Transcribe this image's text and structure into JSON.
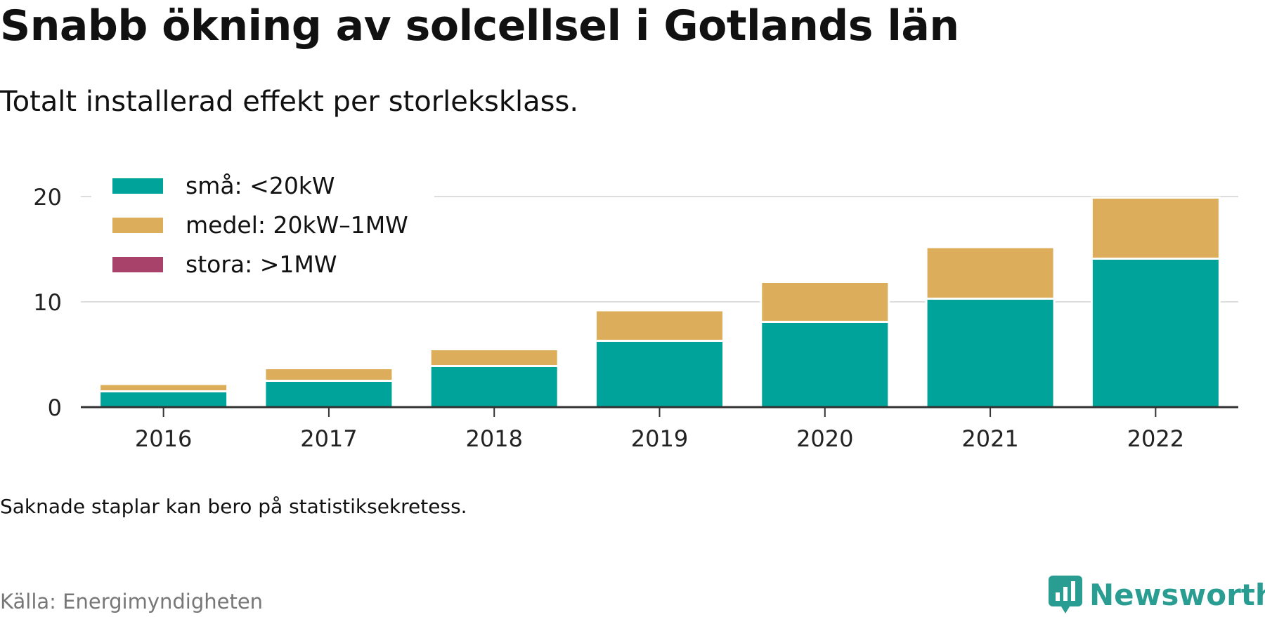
{
  "title": "Snabb ökning av solcellsel i Gotlands län",
  "subtitle": "Totalt installerad effekt per storleksklass.",
  "note": "Saknade staplar kan bero på statistiksekretess.",
  "source": "Källa: Energimyndigheten",
  "brand": {
    "name": "Newsworthy",
    "icon": "newsworthy-logo-icon",
    "color": "#2a9d92"
  },
  "chart_data": {
    "type": "bar",
    "stacked": true,
    "categories": [
      "2016",
      "2017",
      "2018",
      "2019",
      "2020",
      "2021",
      "2022"
    ],
    "series": [
      {
        "name": "små: <20kW",
        "color": "#00a39a",
        "values": [
          1.5,
          2.5,
          3.9,
          6.3,
          8.1,
          10.3,
          14.1
        ]
      },
      {
        "name": "medel: 20kW–1MW",
        "color": "#dcad5b",
        "values": [
          0.7,
          1.2,
          1.6,
          2.9,
          3.8,
          4.9,
          5.8
        ]
      },
      {
        "name": "stora: >1MW",
        "color": "#a8426b",
        "values": [
          0,
          0,
          0,
          0,
          0,
          0,
          0
        ]
      }
    ],
    "yticks": [
      0,
      10,
      20
    ],
    "ylim": [
      0,
      20
    ],
    "grid": true,
    "legend_position": "top-left"
  }
}
